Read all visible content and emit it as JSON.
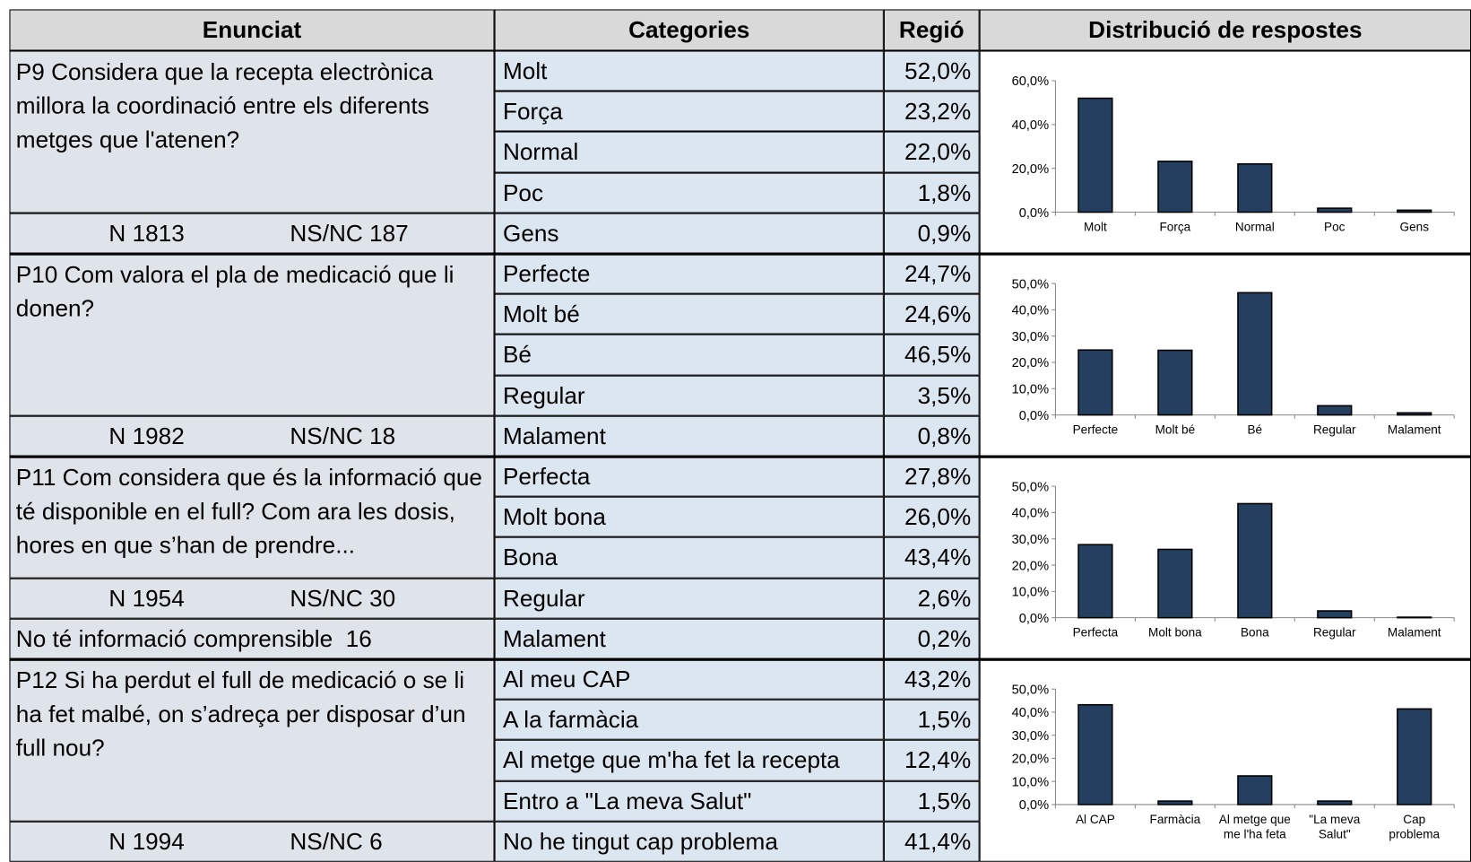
{
  "header": [
    "Enunciat",
    "Categories",
    "Regió",
    "Distribució de respostes"
  ],
  "sections": [
    {
      "question": "P9 Considera que la recepta electrònica millora la coordinació entre els diferents metges que l'atenen?",
      "n": "N 1813",
      "nsnc": "NS/NC 187",
      "rows": [
        {
          "category": "Molt",
          "value": "52,0%"
        },
        {
          "category": "Força",
          "value": "23,2%"
        },
        {
          "category": "Normal",
          "value": "22,0%"
        },
        {
          "category": "Poc",
          "value": "1,8%"
        },
        {
          "category": "Gens",
          "value": "0,9%"
        }
      ],
      "chart": {
        "type": "bar",
        "categories": [
          [
            "Molt"
          ],
          [
            "Força"
          ],
          [
            "Normal"
          ],
          [
            "Poc"
          ],
          [
            "Gens"
          ]
        ],
        "values": [
          52.0,
          23.2,
          22.0,
          1.8,
          0.9
        ],
        "color": "#243f60",
        "ylim": [
          0,
          60
        ],
        "yticks": [
          {
            "value": 0,
            "label": "0,0%"
          },
          {
            "value": 20,
            "label": "20,0%"
          },
          {
            "value": 40,
            "label": "40,0%"
          },
          {
            "value": 60,
            "label": "60,0%"
          }
        ]
      }
    },
    {
      "question": "P10 Com valora el pla de medicació que li donen?",
      "n": "N 1982",
      "nsnc": "NS/NC 18",
      "rows": [
        {
          "category": "Perfecte",
          "value": "24,7%"
        },
        {
          "category": "Molt bé",
          "value": "24,6%"
        },
        {
          "category": "Bé",
          "value": "46,5%"
        },
        {
          "category": "Regular",
          "value": "3,5%"
        },
        {
          "category": "Malament",
          "value": "0,8%"
        }
      ],
      "chart": {
        "type": "bar",
        "categories": [
          [
            "Perfecte"
          ],
          [
            "Molt bé"
          ],
          [
            "Bé"
          ],
          [
            "Regular"
          ],
          [
            "Malament"
          ]
        ],
        "values": [
          24.7,
          24.6,
          46.5,
          3.5,
          0.8
        ],
        "color": "#243f60",
        "ylim": [
          0,
          50
        ],
        "yticks": [
          {
            "value": 0,
            "label": "0,0%"
          },
          {
            "value": 10,
            "label": "10,0%"
          },
          {
            "value": 20,
            "label": "20,0%"
          },
          {
            "value": 30,
            "label": "30,0%"
          },
          {
            "value": 40,
            "label": "40,0%"
          },
          {
            "value": 50,
            "label": "50,0%"
          }
        ]
      }
    },
    {
      "question": "P11 Com considera que és la informació que té disponible en el full? Com ara les dosis, hores en que s’han de prendre...",
      "n": "N 1954",
      "nsnc": "NS/NC 30",
      "note": "No té informació comprensible  16",
      "rows": [
        {
          "category": "Perfecta",
          "value": "27,8%"
        },
        {
          "category": "Molt bona",
          "value": "26,0%"
        },
        {
          "category": "Bona",
          "value": "43,4%"
        },
        {
          "category": "Regular",
          "value": "2,6%"
        },
        {
          "category": "Malament",
          "value": "0,2%"
        }
      ],
      "chart": {
        "type": "bar",
        "categories": [
          [
            "Perfecta"
          ],
          [
            "Molt bona"
          ],
          [
            "Bona"
          ],
          [
            "Regular"
          ],
          [
            "Malament"
          ]
        ],
        "values": [
          27.8,
          26.0,
          43.4,
          2.6,
          0.2
        ],
        "color": "#243f60",
        "ylim": [
          0,
          50
        ],
        "yticks": [
          {
            "value": 0,
            "label": "0,0%"
          },
          {
            "value": 10,
            "label": "10,0%"
          },
          {
            "value": 20,
            "label": "20,0%"
          },
          {
            "value": 30,
            "label": "30,0%"
          },
          {
            "value": 40,
            "label": "40,0%"
          },
          {
            "value": 50,
            "label": "50,0%"
          }
        ]
      }
    },
    {
      "question": "P12 Si ha perdut el full de medicació o se li ha fet malbé, on s’adreça per disposar d’un full nou?",
      "n": "N 1994",
      "nsnc": "NS/NC 6",
      "rows": [
        {
          "category": "Al meu CAP",
          "value": "43,2%"
        },
        {
          "category": "A la farmàcia",
          "value": "1,5%"
        },
        {
          "category": "Al metge que m'ha fet la recepta",
          "value": "12,4%"
        },
        {
          "category": "Entro a \"La meva Salut\"",
          "value": "1,5%"
        },
        {
          "category": "No he tingut cap problema",
          "value": "41,4%"
        }
      ],
      "chart": {
        "type": "bar",
        "categories": [
          [
            "Al CAP"
          ],
          [
            "Farmàcia"
          ],
          [
            "Al metge que",
            "me l'ha feta"
          ],
          [
            "\"La meva",
            "Salut\""
          ],
          [
            "Cap",
            "problema"
          ]
        ],
        "values": [
          43.2,
          1.5,
          12.4,
          1.5,
          41.4
        ],
        "color": "#243f60",
        "ylim": [
          0,
          50
        ],
        "yticks": [
          {
            "value": 0,
            "label": "0,0%"
          },
          {
            "value": 10,
            "label": "10,0%"
          },
          {
            "value": 20,
            "label": "20,0%"
          },
          {
            "value": 30,
            "label": "30,0%"
          },
          {
            "value": 40,
            "label": "40,0%"
          },
          {
            "value": 50,
            "label": "50,0%"
          }
        ]
      }
    }
  ]
}
